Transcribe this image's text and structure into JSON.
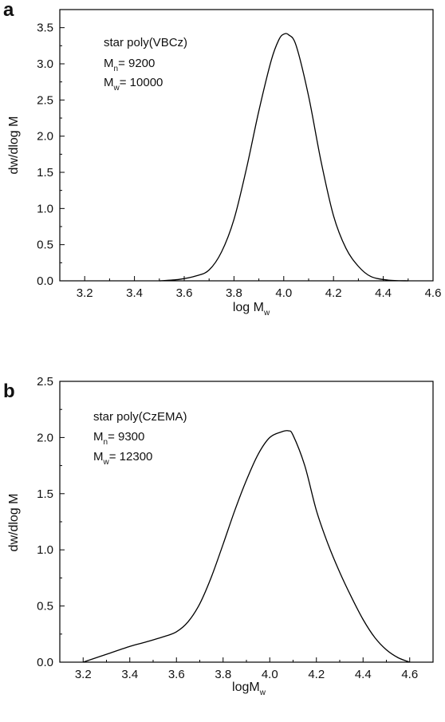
{
  "chart_data": [
    {
      "type": "line",
      "panel_label": "a",
      "xlabel": {
        "main": "log M",
        "sub": "w"
      },
      "ylabel": "dw/dlog M",
      "xlim": [
        3.1,
        4.6
      ],
      "ylim": [
        0,
        3.75
      ],
      "xticks": [
        3.2,
        3.4,
        3.6,
        3.8,
        4.0,
        4.2,
        4.4,
        4.6
      ],
      "xtick_labels": [
        "3.2",
        "3.4",
        "3.6",
        "3.8",
        "4.0",
        "4.2",
        "4.4",
        "4.6"
      ],
      "yticks": [
        0,
        0.5,
        1.0,
        1.5,
        2.0,
        2.5,
        3.0,
        3.5
      ],
      "ytick_labels": [
        "0.0",
        "0.5",
        "1.0",
        "1.5",
        "2.0",
        "2.5",
        "3.0",
        "3.5"
      ],
      "annotation": {
        "name": "star poly(VBCz)",
        "mn_label": "M",
        "mn_sub": "n",
        "mn_value": "= 9200",
        "mw_label": "M",
        "mw_sub": "w",
        "mw_value": "= 10000"
      },
      "grid": false,
      "series": [
        {
          "x": [
            3.5,
            3.58,
            3.65,
            3.7,
            3.75,
            3.8,
            3.85,
            3.9,
            3.95,
            3.98,
            4.0,
            4.02,
            4.05,
            4.1,
            4.15,
            4.2,
            4.25,
            4.3,
            4.35,
            4.42,
            4.5
          ],
          "y": [
            0.0,
            0.02,
            0.07,
            0.15,
            0.4,
            0.85,
            1.55,
            2.35,
            3.05,
            3.33,
            3.41,
            3.4,
            3.25,
            2.55,
            1.65,
            0.9,
            0.45,
            0.2,
            0.06,
            0.01,
            0.0
          ]
        }
      ]
    },
    {
      "type": "line",
      "panel_label": "b",
      "xlabel": {
        "main": "logM",
        "sub": "w"
      },
      "ylabel": "dw/dlog M",
      "xlim": [
        3.1,
        4.7
      ],
      "ylim": [
        0,
        2.5
      ],
      "xticks": [
        3.2,
        3.4,
        3.6,
        3.8,
        4.0,
        4.2,
        4.4,
        4.6
      ],
      "xtick_labels": [
        "3.2",
        "3.4",
        "3.6",
        "3.8",
        "4.0",
        "4.2",
        "4.4",
        "4.6"
      ],
      "yticks": [
        0,
        0.5,
        1.0,
        1.5,
        2.0,
        2.5
      ],
      "ytick_labels": [
        "0.0",
        "0.5",
        "1.0",
        "1.5",
        "2.0",
        "2.5"
      ],
      "annotation": {
        "name": "star poly(CzEMA)",
        "mn_label": "M",
        "mn_sub": "n",
        "mn_value": "= 9300",
        "mw_label": "M",
        "mw_sub": "w",
        "mw_value": "= 12300"
      },
      "grid": false,
      "series": [
        {
          "x": [
            3.2,
            3.3,
            3.4,
            3.47,
            3.55,
            3.6,
            3.65,
            3.7,
            3.75,
            3.8,
            3.85,
            3.9,
            3.95,
            4.0,
            4.05,
            4.08,
            4.1,
            4.15,
            4.2,
            4.25,
            4.3,
            4.35,
            4.4,
            4.45,
            4.5,
            4.55,
            4.6
          ],
          "y": [
            0.0,
            0.07,
            0.14,
            0.18,
            0.23,
            0.27,
            0.36,
            0.52,
            0.76,
            1.05,
            1.35,
            1.62,
            1.85,
            2.0,
            2.05,
            2.06,
            2.02,
            1.75,
            1.35,
            1.05,
            0.8,
            0.58,
            0.38,
            0.22,
            0.11,
            0.04,
            0.0
          ]
        }
      ]
    }
  ]
}
